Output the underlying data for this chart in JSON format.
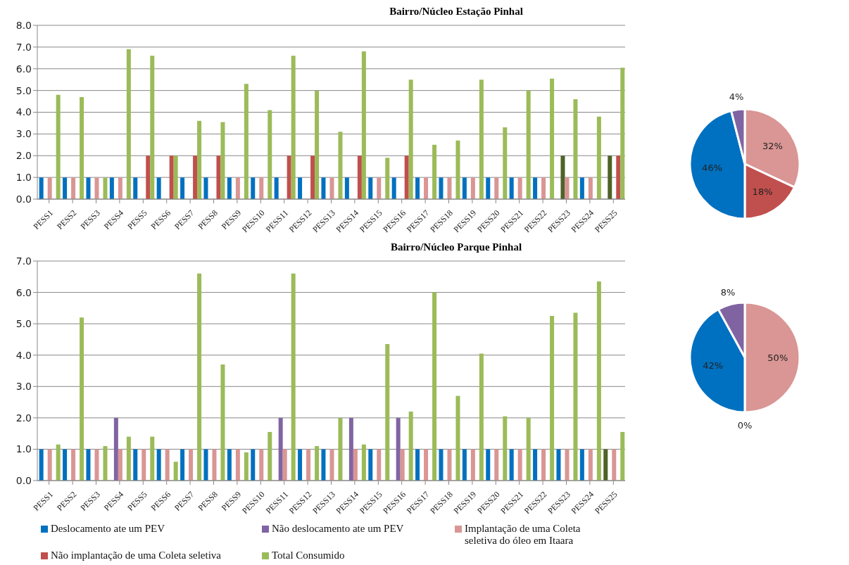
{
  "chart_data": [
    {
      "type": "bar",
      "title": "Bairro/Núcleo Estação Pinhal",
      "categories": [
        "PESS1",
        "PESS2",
        "PESS3",
        "PESS4",
        "PESS5",
        "PESS6",
        "PESS7",
        "PESS8",
        "PESS9",
        "PESS10",
        "PESS11",
        "PESS12",
        "PESS13",
        "PESS14",
        "PESS15",
        "PESS16",
        "PESS17",
        "PESS18",
        "PESS19",
        "PESS20",
        "PESS21",
        "PESS22",
        "PESS23",
        "PESS24",
        "PESS25"
      ],
      "series": [
        {
          "color": "#0070c0",
          "values": [
            1,
            1,
            1,
            1,
            1,
            1,
            1,
            1,
            1,
            1,
            1,
            1,
            1,
            1,
            1,
            1,
            1,
            1,
            1,
            1,
            1,
            1,
            null,
            1,
            null
          ]
        },
        {
          "color": "#4f6228",
          "values": [
            null,
            null,
            null,
            null,
            null,
            null,
            null,
            null,
            null,
            null,
            null,
            null,
            null,
            null,
            null,
            null,
            null,
            null,
            null,
            null,
            null,
            null,
            2,
            null,
            2
          ]
        },
        {
          "color": "#d99694",
          "values": [
            1,
            1,
            1,
            1,
            null,
            null,
            null,
            null,
            1,
            1,
            null,
            null,
            1,
            null,
            1,
            null,
            1,
            1,
            1,
            1,
            1,
            1,
            1,
            1,
            null
          ]
        },
        {
          "color": "#c0504d",
          "values": [
            null,
            null,
            null,
            null,
            2,
            2,
            2,
            2,
            null,
            null,
            2,
            2,
            null,
            2,
            null,
            2,
            null,
            null,
            null,
            null,
            null,
            null,
            null,
            null,
            2
          ]
        },
        {
          "color": "#9bbb59",
          "values": [
            4.8,
            4.7,
            1.0,
            6.9,
            6.6,
            2.0,
            3.6,
            3.55,
            5.3,
            4.1,
            6.6,
            5.0,
            3.1,
            6.8,
            1.9,
            5.5,
            2.5,
            2.7,
            5.5,
            3.3,
            5.0,
            5.55,
            4.6,
            3.8,
            6.05
          ]
        }
      ],
      "ylim": [
        0,
        8
      ],
      "yticks": [
        {
          "value": 0,
          "label": "0.0"
        },
        {
          "value": 1,
          "label": "1.0"
        },
        {
          "value": 2,
          "label": "2.0"
        },
        {
          "value": 3,
          "label": "3.0"
        },
        {
          "value": 4,
          "label": "4.0"
        },
        {
          "value": 5,
          "label": "5.0"
        },
        {
          "value": 6,
          "label": "6.0"
        },
        {
          "value": 7,
          "label": "7.0"
        },
        {
          "value": 8,
          "label": "8.0"
        }
      ],
      "grid": "y",
      "legend": false
    },
    {
      "type": "pie",
      "categories": [
        null,
        null,
        null,
        null
      ],
      "values": [
        32,
        18,
        46,
        4
      ],
      "colors": [
        "#d99694",
        "#c0504d",
        "#0070c0",
        "#8064a2"
      ],
      "value_labels": [
        "32%",
        "18%",
        "46%",
        "4%"
      ]
    },
    {
      "type": "bar",
      "title": "Bairro/Núcleo Parque Pinhal",
      "categories": [
        "PESS1",
        "PESS2",
        "PESS3",
        "PESS4",
        "PESS5",
        "PESS6",
        "PESS7",
        "PESS8",
        "PESS9",
        "PESS10",
        "PESS11",
        "PESS12",
        "PESS13",
        "PESS14",
        "PESS15",
        "PESS16",
        "PESS17",
        "PESS18",
        "PESS19",
        "PESS20",
        "PESS21",
        "PESS22",
        "PESS23",
        "PESS24",
        "PESS25"
      ],
      "series": [
        {
          "name": "Deslocamento ate um PEV",
          "color": "#0070c0",
          "values": [
            1,
            1,
            1,
            null,
            1,
            1,
            1,
            1,
            1,
            1,
            null,
            1,
            1,
            null,
            1,
            null,
            1,
            1,
            1,
            1,
            1,
            1,
            1,
            1,
            1
          ],
          "colors": [
            "#0070c0",
            "#0070c0",
            "#0070c0",
            "#0070c0",
            "#0070c0",
            "#0070c0",
            "#0070c0",
            "#0070c0",
            "#0070c0",
            "#0070c0",
            "#0070c0",
            "#0070c0",
            "#0070c0",
            "#0070c0",
            "#0070c0",
            "#0070c0",
            "#0070c0",
            "#0070c0",
            "#0070c0",
            "#0070c0",
            "#0070c0",
            "#0070c0",
            "#0070c0",
            "#0070c0",
            "#4f6228"
          ]
        },
        {
          "name": "Não deslocamento ate um PEV",
          "color": "#8064a2",
          "values": [
            null,
            null,
            null,
            2,
            null,
            null,
            null,
            null,
            null,
            null,
            2,
            null,
            null,
            2,
            null,
            2,
            null,
            null,
            null,
            null,
            null,
            null,
            null,
            null,
            null
          ]
        },
        {
          "name": "Implantação de uma Coleta seletiva do óleo em Itaara",
          "color": "#d99694",
          "values": [
            1,
            1,
            1,
            1,
            1,
            1,
            1,
            1,
            1,
            1,
            1,
            1,
            1,
            1,
            1,
            1,
            1,
            1,
            1,
            1,
            1,
            1,
            1,
            1,
            1
          ]
        },
        {
          "name": "Não implantação de uma Coleta seletiva",
          "color": "#c0504d",
          "values": [
            null,
            null,
            null,
            null,
            null,
            null,
            null,
            null,
            null,
            null,
            null,
            null,
            null,
            null,
            null,
            null,
            null,
            null,
            null,
            null,
            null,
            null,
            null,
            null,
            null
          ]
        },
        {
          "name": "Total Consumido",
          "color": "#9bbb59",
          "values": [
            1.15,
            5.2,
            1.1,
            1.4,
            1.4,
            0.6,
            6.6,
            3.7,
            0.9,
            1.55,
            6.6,
            1.1,
            2.0,
            1.15,
            4.35,
            2.2,
            6.0,
            2.7,
            4.05,
            2.05,
            2.0,
            5.25,
            5.35,
            6.35,
            1.55
          ]
        }
      ],
      "ylim": [
        0,
        7
      ],
      "yticks": [
        {
          "value": 0,
          "label": "0.0"
        },
        {
          "value": 1,
          "label": "1.0"
        },
        {
          "value": 2,
          "label": "2.0"
        },
        {
          "value": 3,
          "label": "3.0"
        },
        {
          "value": 4,
          "label": "4.0"
        },
        {
          "value": 5,
          "label": "5.0"
        },
        {
          "value": 6,
          "label": "6.0"
        },
        {
          "value": 7,
          "label": "7.0"
        }
      ],
      "grid": "y",
      "legend": "bottom"
    },
    {
      "type": "pie",
      "categories": [
        null,
        null,
        null,
        null
      ],
      "values": [
        50,
        0,
        42,
        8
      ],
      "colors": [
        "#d99694",
        "#c0504d",
        "#0070c0",
        "#8064a2"
      ],
      "value_labels": [
        "50%",
        "0%",
        "42%",
        "8%"
      ]
    }
  ]
}
